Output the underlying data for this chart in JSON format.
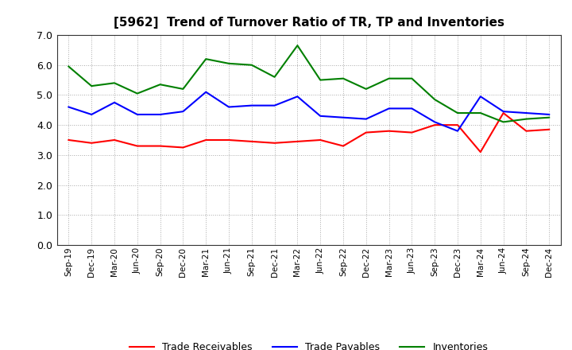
{
  "title": "[5962]  Trend of Turnover Ratio of TR, TP and Inventories",
  "labels": [
    "Sep-19",
    "Dec-19",
    "Mar-20",
    "Jun-20",
    "Sep-20",
    "Dec-20",
    "Mar-21",
    "Jun-21",
    "Sep-21",
    "Dec-21",
    "Mar-22",
    "Jun-22",
    "Sep-22",
    "Dec-22",
    "Mar-23",
    "Jun-23",
    "Sep-23",
    "Dec-23",
    "Mar-24",
    "Jun-24",
    "Sep-24",
    "Dec-24"
  ],
  "trade_receivables": [
    3.5,
    3.4,
    3.5,
    3.3,
    3.3,
    3.25,
    3.5,
    3.5,
    3.45,
    3.4,
    3.45,
    3.5,
    3.3,
    3.75,
    3.8,
    3.75,
    4.0,
    4.0,
    3.1,
    4.4,
    3.8,
    3.85
  ],
  "trade_payables": [
    4.6,
    4.35,
    4.75,
    4.35,
    4.35,
    4.45,
    5.1,
    4.6,
    4.65,
    4.65,
    4.95,
    4.3,
    4.25,
    4.2,
    4.55,
    4.55,
    4.1,
    3.8,
    4.95,
    4.45,
    4.4,
    4.35
  ],
  "inventories": [
    5.95,
    5.3,
    5.4,
    5.05,
    5.35,
    5.2,
    6.2,
    6.05,
    6.0,
    5.6,
    6.65,
    5.5,
    5.55,
    5.2,
    5.55,
    5.55,
    4.85,
    4.4,
    4.4,
    4.1,
    4.2,
    4.25
  ],
  "ylim": [
    0.0,
    7.0
  ],
  "yticks": [
    0.0,
    1.0,
    2.0,
    3.0,
    4.0,
    5.0,
    6.0,
    7.0
  ],
  "line_colors": {
    "trade_receivables": "#ff0000",
    "trade_payables": "#0000ff",
    "inventories": "#008000"
  },
  "legend_labels": [
    "Trade Receivables",
    "Trade Payables",
    "Inventories"
  ],
  "background_color": "#ffffff",
  "plot_bg_color": "#ffffff",
  "title_fontsize": 11,
  "tick_fontsize": 8,
  "legend_fontsize": 9
}
